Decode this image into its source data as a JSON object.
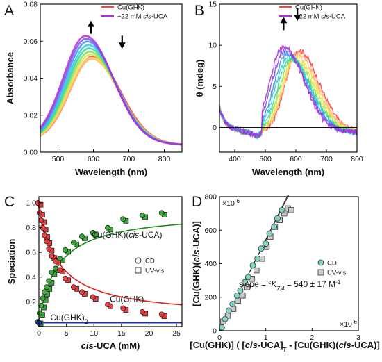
{
  "chart_data": [
    {
      "type": "line",
      "panel": "A",
      "xlabel": "Wavelength (nm)",
      "ylabel": "Absorbance",
      "xlim": [
        450,
        850
      ],
      "ylim": [
        0,
        0.08
      ],
      "xticks": [
        500,
        600,
        700,
        800
      ],
      "yticks": [
        0.0,
        0.02,
        0.04,
        0.06,
        0.08
      ],
      "ytick_labels": [
        "0.00",
        "0.02",
        "0.04",
        "0.06",
        "0.08"
      ],
      "legend": {
        "position": "top-right",
        "entries": [
          {
            "label": "Cu(GHK)",
            "color": "#ff4040"
          },
          {
            "label": "+22 mM ",
            "label_italic": "cis",
            "label_rest": "-UCA",
            "color": "#b030d8"
          }
        ]
      },
      "arrows": [
        {
          "direction": "up",
          "x": 593,
          "y": 0.07
        },
        {
          "direction": "down",
          "x": 681,
          "y": 0.057
        }
      ],
      "series": [
        {
          "name": "Cu(GHK)",
          "peak_x": 598,
          "peak_y": 0.0505,
          "color": "#ff4040"
        },
        {
          "peak_x": 596,
          "peak_y": 0.0492,
          "color": "#ffb070"
        },
        {
          "peak_x": 594,
          "peak_y": 0.0498,
          "color": "#ffd060"
        },
        {
          "peak_x": 592,
          "peak_y": 0.0515,
          "color": "#d8e840"
        },
        {
          "peak_x": 590,
          "peak_y": 0.053,
          "color": "#80e060"
        },
        {
          "peak_x": 588,
          "peak_y": 0.0548,
          "color": "#30d890"
        },
        {
          "peak_x": 586,
          "peak_y": 0.0566,
          "color": "#30c8e0"
        },
        {
          "peak_x": 583,
          "peak_y": 0.0585,
          "color": "#4090f0"
        },
        {
          "peak_x": 580,
          "peak_y": 0.06,
          "color": "#8050e8"
        },
        {
          "name": "+22 mM cis-UCA",
          "peak_x": 578,
          "peak_y": 0.0615,
          "color": "#b030d8"
        }
      ]
    },
    {
      "type": "line",
      "panel": "B",
      "xlabel": "Wavelength (nm)",
      "ylabel": "θ (mdeg)",
      "xlim": [
        350,
        800
      ],
      "ylim": [
        -3,
        15
      ],
      "xticks": [
        400,
        500,
        600,
        700,
        800
      ],
      "yticks": [
        0,
        5,
        10,
        15
      ],
      "legend": {
        "position": "top-right",
        "entries": [
          {
            "label": "Cu(GHK)",
            "color": "#ff4040"
          },
          {
            "label": "+22 mM ",
            "label_italic": "cis",
            "label_rest": "-UCA",
            "color": "#b030d8"
          }
        ]
      },
      "arrows": [
        {
          "direction": "up",
          "x": 560,
          "y": 13.2
        },
        {
          "direction": "down",
          "x": 605,
          "y": 13.2
        }
      ],
      "series": [
        {
          "name": "Cu(GHK)",
          "peak_x": 608,
          "peak_y": 9.4,
          "color": "#ff4040"
        },
        {
          "peak_x": 604,
          "peak_y": 9.0,
          "color": "#ffb070"
        },
        {
          "peak_x": 600,
          "peak_y": 8.7,
          "color": "#ffd060"
        },
        {
          "peak_x": 594,
          "peak_y": 8.4,
          "color": "#d8e840"
        },
        {
          "peak_x": 588,
          "peak_y": 8.3,
          "color": "#80e060"
        },
        {
          "peak_x": 582,
          "peak_y": 8.4,
          "color": "#30d890"
        },
        {
          "peak_x": 576,
          "peak_y": 8.7,
          "color": "#30c8e0"
        },
        {
          "peak_x": 570,
          "peak_y": 9.0,
          "color": "#4090f0"
        },
        {
          "peak_x": 564,
          "peak_y": 9.4,
          "color": "#8050e8"
        },
        {
          "name": "+22 mM cis-UCA",
          "peak_x": 558,
          "peak_y": 9.8,
          "color": "#b030d8"
        }
      ]
    },
    {
      "type": "scatter",
      "panel": "C",
      "xlabel_italic": "cis",
      "xlabel_rest": "-UCA (mM)",
      "ylabel": "Speciation",
      "xlim": [
        0,
        26
      ],
      "ylim": [
        0,
        1.05
      ],
      "xticks": [
        0,
        5,
        10,
        15,
        20,
        25
      ],
      "yticks": [
        0.2,
        0.4,
        0.6,
        0.8,
        1.0
      ],
      "ytick_labels": [
        "0.2",
        "0.4",
        "0.6",
        "0.8",
        "1.0"
      ],
      "legend": {
        "position": "center-right",
        "entries": [
          {
            "label": "CD",
            "marker": "circle"
          },
          {
            "label": "UV-vis",
            "marker": "square"
          }
        ]
      },
      "annotations": [
        {
          "text": "Cu(GHK)(",
          "italic": "cis",
          "rest": "-UCA)",
          "color": "#1a8a1a",
          "x": 16,
          "y": 0.72
        },
        {
          "text": "Cu(GHK)",
          "color": "#e02020",
          "x": 16,
          "y": 0.2
        },
        {
          "text": "Cu(GHK)",
          "sub": "2",
          "color": "#2030c0",
          "x": 5.5,
          "y": 0.05
        }
      ],
      "curves": [
        {
          "name": "Cu(GHK)(cis-UCA)",
          "color": "#1a8a1a",
          "K": 0.3,
          "max": 0.97
        },
        {
          "name": "Cu(GHK)",
          "color": "#e02020",
          "K": 0.3,
          "max": 0.97,
          "offset": 0.03
        },
        {
          "name": "Cu(GHK)2",
          "color": "#2030c0",
          "value": 0.03
        }
      ],
      "series": [
        {
          "name": "Cu(GHK)(cis-UCA)",
          "color": "#3aaa3a",
          "x": [
            0,
            0.3,
            0.6,
            0.9,
            1.2,
            1.6,
            2.0,
            2.5,
            3.2,
            4.0,
            5.0,
            6.5,
            8.0,
            10.0,
            12.7,
            15.5,
            19.0,
            22.5
          ],
          "y": [
            0.03,
            0.1,
            0.16,
            0.22,
            0.27,
            0.31,
            0.36,
            0.43,
            0.46,
            0.54,
            0.61,
            0.67,
            0.72,
            0.75,
            0.79,
            0.86,
            0.89,
            0.91
          ]
        },
        {
          "name": "Cu(GHK)",
          "color": "#e84040",
          "x": [
            0,
            0.3,
            0.6,
            0.9,
            1.2,
            1.6,
            2.0,
            2.5,
            3.2,
            4.0,
            5.0,
            6.5,
            8.0,
            10.0,
            12.7,
            15.5,
            19.0,
            22.5
          ],
          "y": [
            0.99,
            0.91,
            0.85,
            0.79,
            0.73,
            0.68,
            0.62,
            0.56,
            0.52,
            0.45,
            0.38,
            0.31,
            0.27,
            0.23,
            0.17,
            0.14,
            0.11,
            0.09
          ]
        },
        {
          "name": "Cu(GHK)2",
          "color": "#2030c0",
          "x": [
            0
          ],
          "y": [
            0.03
          ]
        }
      ]
    },
    {
      "type": "scatter",
      "panel": "D",
      "xlabel": "[Cu(GHK)] ( [cis-UCA]T - [Cu(GHK)(cis-UCA)] )",
      "xlabel_parts": [
        "[Cu(GHK)] ( [",
        "cis",
        "-UCA]",
        "T",
        " - [Cu(GHK)(",
        "cis",
        "-UCA)] )"
      ],
      "ylabel": "[Cu(GHK)(cis-UCA)]",
      "ylabel_parts": [
        "[Cu(GHK)(",
        "cis",
        "-UCA)]"
      ],
      "xlim": [
        0,
        3
      ],
      "ylim": [
        0,
        800
      ],
      "xticks": [
        0,
        1,
        2,
        3
      ],
      "yticks": [
        0,
        200,
        400,
        600,
        800
      ],
      "x_multiplier": "×10",
      "x_multiplier_exp": "-6",
      "y_multiplier": "×10",
      "y_multiplier_exp": "-6",
      "legend": {
        "position": "center-right",
        "entries": [
          {
            "label": "CD",
            "marker": "circle",
            "color": "#7fd4c4"
          },
          {
            "label": "UV-vis",
            "marker": "square",
            "color": "#c8c8c8"
          }
        ]
      },
      "fit": {
        "slope_text": "slope = ",
        "sup": "c",
        "K": "K",
        "Ksub": "7.4",
        "rest": " = 540 ± 17 M",
        "rest_exp": "-1",
        "slope": 540,
        "intercept": 0
      },
      "series": [
        {
          "name": "CD",
          "marker": "circle",
          "color": "#7fd4c4",
          "x": [
            0.05,
            0.12,
            0.2,
            0.28,
            0.38,
            0.45,
            0.55,
            0.62,
            0.72,
            0.82,
            0.9,
            1.0,
            1.08,
            1.18,
            1.25,
            1.35
          ],
          "y": [
            20,
            70,
            120,
            160,
            210,
            240,
            290,
            320,
            390,
            430,
            490,
            520,
            580,
            620,
            670,
            720
          ]
        },
        {
          "name": "UV-vis",
          "marker": "square",
          "color": "#c8c8c8",
          "x": [
            0.08,
            0.18,
            0.3,
            0.4,
            0.5,
            0.6,
            0.7,
            0.8,
            0.92,
            1.02,
            1.1,
            1.2,
            1.3,
            1.4,
            1.48,
            1.55
          ],
          "y": [
            55,
            90,
            130,
            180,
            210,
            260,
            310,
            360,
            430,
            500,
            560,
            620,
            660,
            700,
            730,
            720
          ]
        }
      ]
    }
  ]
}
